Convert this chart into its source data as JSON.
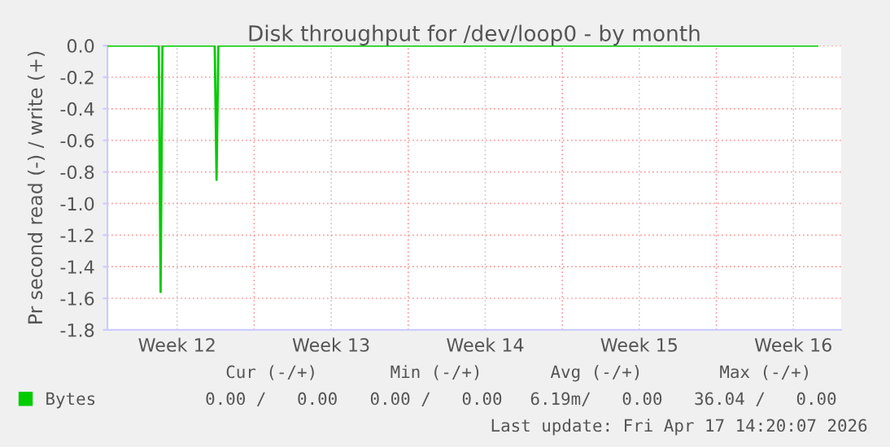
{
  "chart_data": {
    "type": "line",
    "title": "Disk throughput for /dev/loop0 - by month",
    "ylabel": "Pr second read (-) / write (+)",
    "x": [
      "2026-03-16T08:00",
      "2026-03-18T16:00",
      "2026-03-18T18:00",
      "2026-03-18T20:00",
      "2026-03-21T05:00",
      "2026-03-21T07:00",
      "2026-03-21T09:00",
      "2026-04-17T14:00"
    ],
    "series": [
      {
        "name": "Bytes",
        "color": "#00cc00",
        "values": [
          0,
          0,
          -1.56,
          0,
          0,
          -0.85,
          0,
          0
        ]
      }
    ],
    "xlim": [
      "2026-03-16T08:00",
      "2026-04-18T16:00"
    ],
    "xticks": [
      {
        "value": "2026-03-19T12:00",
        "label": "Week 12"
      },
      {
        "value": "2026-03-23",
        "label": null
      },
      {
        "value": "2026-03-26T12:00",
        "label": "Week 13"
      },
      {
        "value": "2026-03-30",
        "label": null
      },
      {
        "value": "2026-04-02T12:00",
        "label": "Week 14"
      },
      {
        "value": "2026-04-06",
        "label": null
      },
      {
        "value": "2026-04-09T12:00",
        "label": "Week 15"
      },
      {
        "value": "2026-04-13",
        "label": null
      },
      {
        "value": "2026-04-16T12:00",
        "label": "Week 16"
      }
    ],
    "ylim": [
      -1.8,
      0.0
    ],
    "yticks": [
      {
        "value": -1.8,
        "label": "-1.8"
      },
      {
        "value": -1.6,
        "label": "-1.6"
      },
      {
        "value": -1.4,
        "label": "-1.4"
      },
      {
        "value": -1.2,
        "label": "-1.2"
      },
      {
        "value": -1.0,
        "label": "-1.0"
      },
      {
        "value": -0.8,
        "label": "-0.8"
      },
      {
        "value": -0.6,
        "label": "-0.6"
      },
      {
        "value": -0.4,
        "label": "-0.4"
      },
      {
        "value": -0.2,
        "label": "-0.2"
      },
      {
        "value": 0.0,
        "label": "0.0"
      }
    ],
    "grid": true,
    "legend": "bottom left",
    "marker": "none",
    "line_style": "solid",
    "annotations": [
      "Cur (-/+)",
      "Min (-/+)",
      "Avg (-/+)",
      "Max (-/+)",
      "0.00 /   0.00",
      "0.00 /   0.00",
      "6.19m/   0.00",
      "36.04 /   0.00",
      "Last update: Fri Apr 17 14:20:07 2026"
    ]
  }
}
